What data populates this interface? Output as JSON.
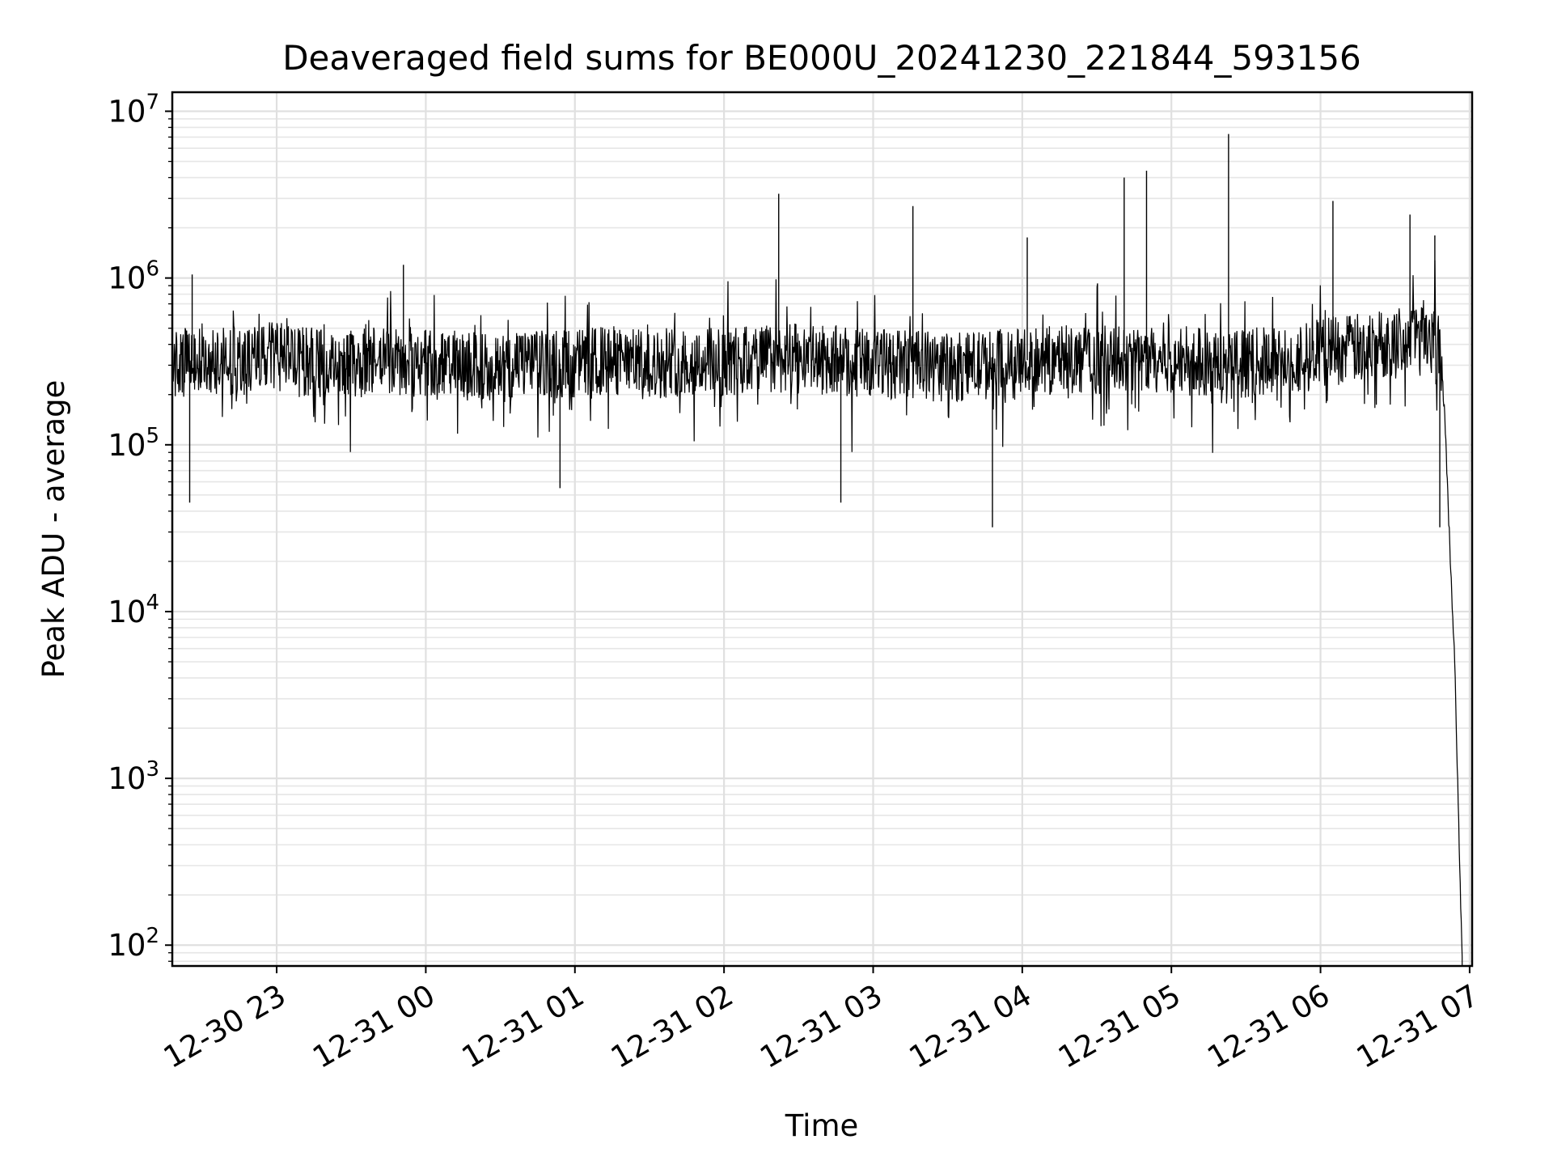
{
  "chart_data": {
    "type": "line",
    "title": "Deaveraged field sums for BE000U_20241230_221844_593156",
    "xlabel": "Time",
    "ylabel": "Peak ADU - average",
    "x_scale": "date",
    "y_scale": "log",
    "xlim": [
      "2024-12-30 22:18",
      "2024-12-31 07:01"
    ],
    "ylim": [
      75,
      13000000
    ],
    "grid": true,
    "legend": "none",
    "line_color": "#000000",
    "x_ticks": [
      {
        "value": "2024-12-30 23:00",
        "label": "12-30 23"
      },
      {
        "value": "2024-12-31 00:00",
        "label": "12-31 00"
      },
      {
        "value": "2024-12-31 01:00",
        "label": "12-31 01"
      },
      {
        "value": "2024-12-31 02:00",
        "label": "12-31 02"
      },
      {
        "value": "2024-12-31 03:00",
        "label": "12-31 03"
      },
      {
        "value": "2024-12-31 04:00",
        "label": "12-31 04"
      },
      {
        "value": "2024-12-31 05:00",
        "label": "12-31 05"
      },
      {
        "value": "2024-12-31 06:00",
        "label": "12-31 06"
      },
      {
        "value": "2024-12-31 07:00",
        "label": "12-31 07"
      }
    ],
    "y_ticks": [
      {
        "value": 100,
        "base": "10",
        "exp": "2"
      },
      {
        "value": 1000,
        "base": "10",
        "exp": "3"
      },
      {
        "value": 10000,
        "base": "10",
        "exp": "4"
      },
      {
        "value": 100000,
        "base": "10",
        "exp": "5"
      },
      {
        "value": 1000000,
        "base": "10",
        "exp": "6"
      },
      {
        "value": 10000000,
        "base": "10",
        "exp": "7"
      }
    ],
    "series": [
      {
        "x": [
          "2024-12-30 22:18",
          "2024-12-30 22:30",
          "2024-12-30 22:45",
          "2024-12-30 23:00",
          "2024-12-30 23:15",
          "2024-12-30 23:30",
          "2024-12-30 23:45",
          "2024-12-31 00:00",
          "2024-12-31 00:15",
          "2024-12-31 00:30",
          "2024-12-31 00:45",
          "2024-12-31 01:00",
          "2024-12-31 01:15",
          "2024-12-31 01:30",
          "2024-12-31 01:45",
          "2024-12-31 02:00",
          "2024-12-31 02:15",
          "2024-12-31 02:30",
          "2024-12-31 02:45",
          "2024-12-31 03:00",
          "2024-12-31 03:15",
          "2024-12-31 03:30",
          "2024-12-31 03:45",
          "2024-12-31 04:00",
          "2024-12-31 04:15",
          "2024-12-31 04:30",
          "2024-12-31 04:45",
          "2024-12-31 05:00",
          "2024-12-31 05:15",
          "2024-12-31 05:30",
          "2024-12-31 05:45",
          "2024-12-31 06:00",
          "2024-12-31 06:15",
          "2024-12-31 06:30",
          "2024-12-31 06:40",
          "2024-12-31 06:45",
          "2024-12-31 06:48",
          "2024-12-31 06:50",
          "2024-12-31 06:52",
          "2024-12-31 06:54",
          "2024-12-31 06:56",
          "2024-12-31 06:57"
        ],
        "values": [
          300000,
          330000,
          320000,
          340000,
          310000,
          300000,
          320000,
          310000,
          300000,
          290000,
          300000,
          310000,
          320000,
          300000,
          320000,
          310000,
          330000,
          330000,
          320000,
          310000,
          300000,
          290000,
          300000,
          320000,
          330000,
          310000,
          320000,
          340000,
          300000,
          310000,
          320000,
          360000,
          380000,
          420000,
          470000,
          480000,
          400000,
          150000,
          25000,
          5000,
          300,
          80
        ]
      }
    ],
    "spikes": [
      {
        "x": "2024-12-30 22:26",
        "value": 1050000
      },
      {
        "x": "2024-12-30 22:25",
        "value": 45000
      },
      {
        "x": "2024-12-30 23:51",
        "value": 1200000
      },
      {
        "x": "2024-12-31 00:54",
        "value": 55000
      },
      {
        "x": "2024-12-31 02:22",
        "value": 3200000
      },
      {
        "x": "2024-12-31 02:47",
        "value": 45000
      },
      {
        "x": "2024-12-31 03:16",
        "value": 2700000
      },
      {
        "x": "2024-12-31 03:48",
        "value": 32000
      },
      {
        "x": "2024-12-31 04:02",
        "value": 1750000
      },
      {
        "x": "2024-12-31 04:41",
        "value": 4000000
      },
      {
        "x": "2024-12-31 04:50",
        "value": 4400000
      },
      {
        "x": "2024-12-31 05:23",
        "value": 7300000
      },
      {
        "x": "2024-12-31 06:05",
        "value": 2900000
      },
      {
        "x": "2024-12-31 06:36",
        "value": 2400000
      },
      {
        "x": "2024-12-31 06:46",
        "value": 1800000
      },
      {
        "x": "2024-12-31 06:48",
        "value": 32000
      }
    ]
  }
}
